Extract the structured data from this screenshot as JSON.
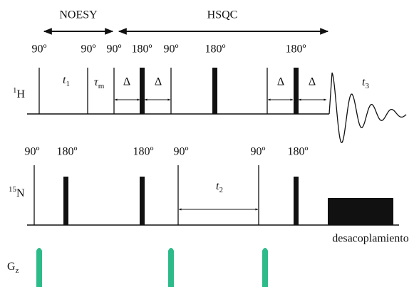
{
  "sections": {
    "noesy": "NOESY",
    "hsqc": "HSQC"
  },
  "channels": [
    {
      "isotope": "1",
      "label": "H"
    },
    {
      "isotope": "15",
      "label": "N"
    },
    {
      "label": "G",
      "subscript": "z"
    }
  ],
  "h_pulse_labels": [
    "90º",
    "90º",
    "90º",
    "180º",
    "90º",
    "180º",
    "180º"
  ],
  "h_delays": [
    {
      "symbol": "t",
      "subscript": "1"
    },
    {
      "symbol": "τ",
      "subscript": "m"
    }
  ],
  "deltas": [
    "Δ",
    "Δ",
    "Δ",
    "Δ"
  ],
  "acquisition": {
    "symbol": "t",
    "subscript": "3"
  },
  "n_pulse_labels": [
    "90º",
    "180º",
    "180º",
    "90º",
    "90º",
    "180º"
  ],
  "n_evolution": {
    "symbol": "t",
    "subscript": "2"
  },
  "decoupling": "desacoplamiento"
}
